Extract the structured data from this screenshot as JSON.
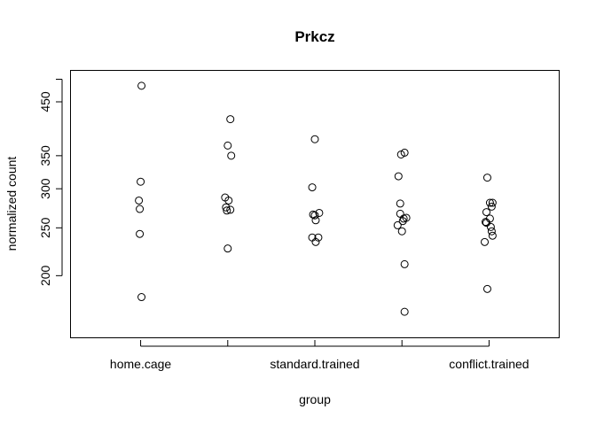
{
  "chart_data": {
    "type": "scatter",
    "title": "Prkcz",
    "xlabel": "group",
    "ylabel": "normalized count",
    "y_scale": "log",
    "ylim": [
      150,
      520
    ],
    "grid": false,
    "legend": "none",
    "x_positions": [
      1,
      2,
      3,
      4,
      5
    ],
    "xlim": [
      0.2,
      5.8
    ],
    "x_tick_labels": [
      {
        "x": 1,
        "label": "home.cage"
      },
      {
        "x": 2,
        "label": ""
      },
      {
        "x": 3,
        "label": "standard.trained"
      },
      {
        "x": 4,
        "label": ""
      },
      {
        "x": 5,
        "label": "conflict.trained"
      }
    ],
    "y_ticks": [
      {
        "value": 200,
        "label": "200"
      },
      {
        "value": 250,
        "label": "250"
      },
      {
        "value": 300,
        "label": "300"
      },
      {
        "value": 350,
        "label": "350"
      },
      {
        "value": 450,
        "label": "450"
      },
      {
        "value": 500,
        "label": ""
      }
    ],
    "series": [
      {
        "group": 1,
        "points": [
          {
            "x": 1.01,
            "y": 485
          },
          {
            "x": 1.0,
            "y": 310
          },
          {
            "x": 0.98,
            "y": 284
          },
          {
            "x": 0.99,
            "y": 273
          },
          {
            "x": 0.99,
            "y": 243
          },
          {
            "x": 1.01,
            "y": 181
          }
        ]
      },
      {
        "group": 2,
        "points": [
          {
            "x": 2.03,
            "y": 415
          },
          {
            "x": 2.0,
            "y": 367
          },
          {
            "x": 2.04,
            "y": 350
          },
          {
            "x": 1.97,
            "y": 288
          },
          {
            "x": 2.01,
            "y": 284
          },
          {
            "x": 1.98,
            "y": 275
          },
          {
            "x": 1.99,
            "y": 271
          },
          {
            "x": 2.03,
            "y": 272
          },
          {
            "x": 2.0,
            "y": 227
          }
        ]
      },
      {
        "group": 3,
        "points": [
          {
            "x": 3.0,
            "y": 378
          },
          {
            "x": 2.97,
            "y": 302
          },
          {
            "x": 3.05,
            "y": 268
          },
          {
            "x": 2.98,
            "y": 266
          },
          {
            "x": 3.0,
            "y": 265
          },
          {
            "x": 3.01,
            "y": 259
          },
          {
            "x": 2.97,
            "y": 239
          },
          {
            "x": 3.04,
            "y": 239
          },
          {
            "x": 3.01,
            "y": 234
          }
        ]
      },
      {
        "group": 4,
        "points": [
          {
            "x": 4.03,
            "y": 355
          },
          {
            "x": 3.99,
            "y": 352
          },
          {
            "x": 3.96,
            "y": 318
          },
          {
            "x": 3.98,
            "y": 280
          },
          {
            "x": 3.98,
            "y": 267
          },
          {
            "x": 4.05,
            "y": 262
          },
          {
            "x": 4.02,
            "y": 261
          },
          {
            "x": 4.01,
            "y": 258
          },
          {
            "x": 3.95,
            "y": 253
          },
          {
            "x": 4.0,
            "y": 246
          },
          {
            "x": 4.03,
            "y": 211
          },
          {
            "x": 4.03,
            "y": 169
          }
        ]
      },
      {
        "group": 5,
        "points": [
          {
            "x": 4.98,
            "y": 316
          },
          {
            "x": 5.01,
            "y": 281
          },
          {
            "x": 5.04,
            "y": 281
          },
          {
            "x": 5.03,
            "y": 276
          },
          {
            "x": 4.97,
            "y": 269
          },
          {
            "x": 5.01,
            "y": 261
          },
          {
            "x": 4.96,
            "y": 257
          },
          {
            "x": 4.97,
            "y": 256
          },
          {
            "x": 5.02,
            "y": 251
          },
          {
            "x": 5.03,
            "y": 246
          },
          {
            "x": 5.04,
            "y": 241
          },
          {
            "x": 4.95,
            "y": 234
          },
          {
            "x": 4.98,
            "y": 188
          }
        ]
      }
    ]
  }
}
